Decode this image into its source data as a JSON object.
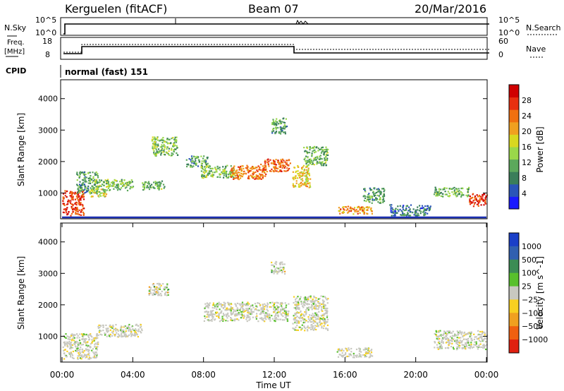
{
  "header": {
    "station": "Kerguelen (fitACF)",
    "beam": "Beam 07",
    "date": "20/Mar/2016"
  },
  "sky_panel": {
    "left_label": "N.Sky",
    "right_label": "N.Search",
    "left_ticks": [
      "10^5",
      "10^0"
    ],
    "right_ticks": [
      "10^5",
      "10^0"
    ]
  },
  "freq_panel": {
    "left_label_line1": "Freq.",
    "left_label_line2": "[MHz]",
    "right_label": "Nave",
    "left_ticks": [
      "18",
      "8"
    ],
    "right_ticks": [
      "60",
      "0"
    ],
    "cpid_label": "CPID",
    "cpid_text": "normal (fast) 151"
  },
  "chart_data": [
    {
      "type": "heatmap",
      "title": "",
      "ylabel": "Slant Range [km]",
      "ylim": [
        180,
        4600
      ],
      "yticks": [
        1000,
        2000,
        3000,
        4000
      ],
      "xlim": [
        0,
        24
      ],
      "colorbar": {
        "label": "Power [dB]",
        "ticks": [
          4,
          8,
          12,
          16,
          20,
          24,
          28
        ],
        "range": [
          0,
          32
        ],
        "colors": [
          "#1a1aff",
          "#2a55b8",
          "#3a7e5a",
          "#5ca85c",
          "#9ad84a",
          "#d8d820",
          "#f0a020",
          "#f07010",
          "#e83010",
          "#d00000"
        ]
      },
      "echo_regions": [
        {
          "t0": 0.0,
          "t1": 1.2,
          "r0": 300,
          "r1": 1100,
          "level": 0.9
        },
        {
          "t0": 0.8,
          "t1": 2.0,
          "r0": 1000,
          "r1": 1700,
          "level": 0.3
        },
        {
          "t0": 1.8,
          "t1": 4.0,
          "r0": 1100,
          "r1": 1450,
          "level": 0.4
        },
        {
          "t0": 1.5,
          "t1": 2.5,
          "r0": 900,
          "r1": 1150,
          "level": 0.5
        },
        {
          "t0": 4.5,
          "t1": 5.8,
          "r0": 1100,
          "r1": 1400,
          "level": 0.35
        },
        {
          "t0": 5.0,
          "t1": 6.5,
          "r0": 2200,
          "r1": 2800,
          "level": 0.4
        },
        {
          "t0": 7.0,
          "t1": 8.2,
          "r0": 1850,
          "r1": 2200,
          "level": 0.3
        },
        {
          "t0": 7.8,
          "t1": 9.8,
          "r0": 1500,
          "r1": 1900,
          "level": 0.4
        },
        {
          "t0": 9.5,
          "t1": 11.5,
          "r0": 1450,
          "r1": 1900,
          "level": 0.75
        },
        {
          "t0": 11.2,
          "t1": 12.9,
          "r0": 1700,
          "r1": 2100,
          "level": 0.8
        },
        {
          "t0": 11.8,
          "t1": 12.7,
          "r0": 2900,
          "r1": 3400,
          "level": 0.3
        },
        {
          "t0": 13.0,
          "t1": 14.0,
          "r0": 1200,
          "r1": 1900,
          "level": 0.6
        },
        {
          "t0": 13.6,
          "t1": 15.0,
          "r0": 1900,
          "r1": 2500,
          "level": 0.35
        },
        {
          "t0": 15.5,
          "t1": 17.5,
          "r0": 350,
          "r1": 600,
          "level": 0.7
        },
        {
          "t0": 17.0,
          "t1": 18.2,
          "r0": 700,
          "r1": 1200,
          "level": 0.3
        },
        {
          "t0": 18.5,
          "t1": 20.8,
          "r0": 300,
          "r1": 650,
          "level": 0.2
        },
        {
          "t0": 21.0,
          "t1": 23.0,
          "r0": 900,
          "r1": 1200,
          "level": 0.35
        },
        {
          "t0": 23.0,
          "t1": 24.0,
          "r0": 600,
          "r1": 1000,
          "level": 0.9
        }
      ]
    },
    {
      "type": "heatmap",
      "title": "",
      "xlabel": "Time UT",
      "ylabel": "Slant Range [km]",
      "ylim": [
        180,
        4600
      ],
      "yticks": [
        1000,
        2000,
        3000,
        4000
      ],
      "xlim": [
        0,
        24
      ],
      "xticks": [
        "00:00",
        "04:00",
        "08:00",
        "12:00",
        "16:00",
        "20:00",
        "00:00"
      ],
      "colorbar": {
        "label": "Velocity [m s^-1]",
        "ticks": [
          "1000",
          "500",
          "100",
          "25",
          "−25",
          "−100",
          "−500",
          "−1000"
        ],
        "colors": [
          "#1a3fc8",
          "#3060b0",
          "#3c8c54",
          "#58c02c",
          "#c8c8c0",
          "#f8d020",
          "#f0a020",
          "#f06010",
          "#e02010"
        ]
      },
      "echo_regions": [
        {
          "t0": 0.0,
          "t1": 2.0,
          "r0": 300,
          "r1": 1100,
          "level": 0.4
        },
        {
          "t0": 2.0,
          "t1": 4.5,
          "r0": 1000,
          "r1": 1400,
          "level": 0.4
        },
        {
          "t0": 4.8,
          "t1": 6.0,
          "r0": 2300,
          "r1": 2700,
          "level": 0.8
        },
        {
          "t0": 8.0,
          "t1": 12.8,
          "r0": 1500,
          "r1": 2100,
          "level": 0.45
        },
        {
          "t0": 11.8,
          "t1": 12.6,
          "r0": 3000,
          "r1": 3400,
          "level": 0.7
        },
        {
          "t0": 13.0,
          "t1": 15.0,
          "r0": 1200,
          "r1": 2300,
          "level": 0.45
        },
        {
          "t0": 15.5,
          "t1": 17.5,
          "r0": 350,
          "r1": 650,
          "level": 0.55
        },
        {
          "t0": 21.0,
          "t1": 24.0,
          "r0": 600,
          "r1": 1200,
          "level": 0.45
        }
      ]
    }
  ]
}
